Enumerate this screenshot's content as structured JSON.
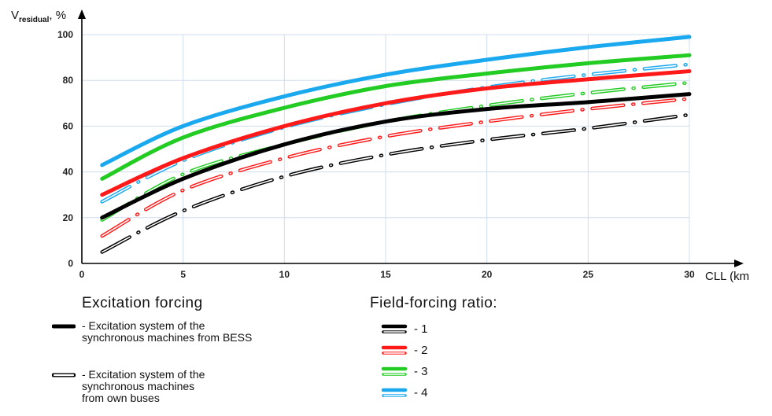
{
  "chart_data": {
    "type": "line",
    "ylabel_main": "V",
    "ylabel_sub": "residual",
    "ylabel_unit": ", %",
    "xlabel": "CLL (km",
    "xlim": [
      0,
      30
    ],
    "ylim": [
      0,
      100
    ],
    "x_ticks": [
      "0",
      "5",
      "10",
      "15",
      "20",
      "25",
      "30"
    ],
    "y_ticks": [
      "0",
      "20",
      "40",
      "60",
      "80",
      "100"
    ],
    "grid": true,
    "x": [
      1,
      5,
      10,
      15,
      20,
      25,
      30
    ],
    "series": [
      {
        "ratio": "1",
        "excitation": "BESS",
        "color": "#000000",
        "values": [
          20,
          37,
          52,
          62,
          67.5,
          70.5,
          74
        ]
      },
      {
        "ratio": "1",
        "excitation": "own buses",
        "color": "#000000",
        "values": [
          5,
          23,
          38,
          47.5,
          54,
          59,
          65
        ]
      },
      {
        "ratio": "2",
        "excitation": "BESS",
        "color": "#ff1a1a",
        "values": [
          30,
          46,
          60,
          70,
          76.5,
          80.5,
          84
        ]
      },
      {
        "ratio": "2",
        "excitation": "own buses",
        "color": "#ff1a1a",
        "values": [
          12,
          32,
          46,
          55.5,
          62,
          67.5,
          72
        ]
      },
      {
        "ratio": "3",
        "excitation": "BESS",
        "color": "#22cc22",
        "values": [
          37,
          55,
          68,
          77.5,
          83,
          87.5,
          91
        ]
      },
      {
        "ratio": "3",
        "excitation": "own buses",
        "color": "#22cc22",
        "values": [
          19,
          39,
          52,
          62,
          69,
          74.5,
          79
        ]
      },
      {
        "ratio": "4",
        "excitation": "BESS",
        "color": "#1aa8ee",
        "values": [
          43,
          60,
          73,
          82.5,
          89,
          94.5,
          99
        ]
      },
      {
        "ratio": "4",
        "excitation": "own buses",
        "color": "#1aa8ee",
        "values": [
          27,
          45,
          59.5,
          69.5,
          77,
          82.5,
          87
        ]
      }
    ]
  },
  "legend": {
    "excitation_title": "Excitation forcing",
    "solid_label": "- Excitation system of the\nsynchronous  machines from BESS",
    "hollow_label": "- Excitation system of the\nsynchronous  machines\nfrom own buses",
    "ratio_title": "Field-forcing ratio:",
    "ratios": [
      {
        "label": "- 1",
        "color": "#000000"
      },
      {
        "label": "- 2",
        "color": "#ff1a1a"
      },
      {
        "label": "- 3",
        "color": "#22cc22"
      },
      {
        "label": "- 4",
        "color": "#1aa8ee"
      }
    ]
  }
}
